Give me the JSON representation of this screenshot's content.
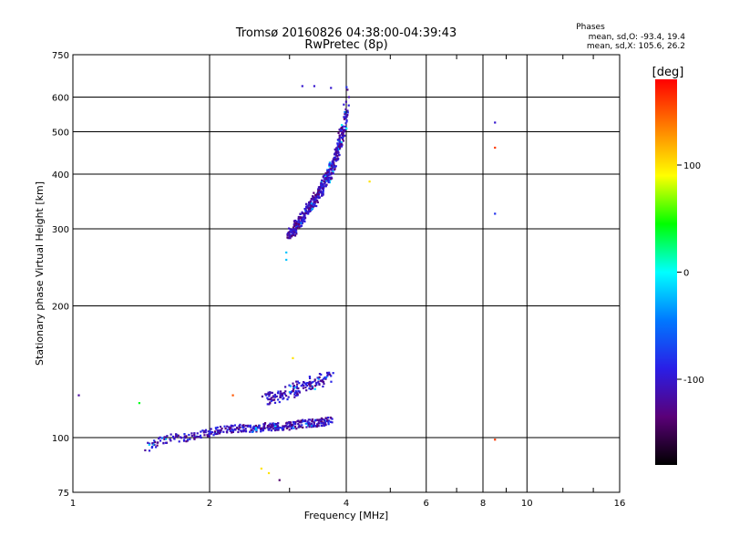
{
  "chart_data": {
    "type": "scatter",
    "title": "Tromsø 20160826 04:38:00-04:39:43",
    "subtitle": "RwPretec (8p)",
    "xlabel": "Frequency [MHz]",
    "ylabel": "Stationary phase Virtual Height [km]",
    "x_scale": "log",
    "y_scale": "log",
    "xlim": [
      1,
      16
    ],
    "ylim": [
      75,
      750
    ],
    "x_ticks": [
      1,
      2,
      4,
      6,
      8,
      10,
      16
    ],
    "y_ticks": [
      75,
      100,
      200,
      300,
      400,
      500,
      600,
      750
    ],
    "grid": true,
    "phases_box": {
      "title": "Phases",
      "line1": "mean, sd,O: -93.4, 19.4",
      "line2": "mean, sd,X: 105.6, 26.2"
    },
    "colorbar": {
      "label": "[deg]",
      "range": [
        -180,
        180
      ],
      "ticks": [
        100,
        0,
        -100
      ],
      "colormap": [
        "#000000",
        "#5a0078",
        "#2a1ee6",
        "#0078ff",
        "#00ffff",
        "#00ff00",
        "#ffff00",
        "#ff8000",
        "#ff0000"
      ]
    },
    "trace_F_layer": [
      [
        3.0,
        290
      ],
      [
        3.05,
        296
      ],
      [
        3.1,
        303
      ],
      [
        3.15,
        310
      ],
      [
        3.2,
        317
      ],
      [
        3.25,
        325
      ],
      [
        3.3,
        333
      ],
      [
        3.35,
        340
      ],
      [
        3.4,
        348
      ],
      [
        3.45,
        357
      ],
      [
        3.5,
        365
      ],
      [
        3.55,
        374
      ],
      [
        3.6,
        385
      ],
      [
        3.65,
        396
      ],
      [
        3.7,
        410
      ],
      [
        3.75,
        425
      ],
      [
        3.8,
        442
      ],
      [
        3.85,
        462
      ],
      [
        3.9,
        485
      ],
      [
        3.95,
        515
      ],
      [
        3.98,
        550
      ],
      [
        4.0,
        590
      ],
      [
        4.01,
        630
      ]
    ],
    "trace_E_layer": [
      [
        1.45,
        95
      ],
      [
        1.55,
        98
      ],
      [
        1.65,
        100
      ],
      [
        1.8,
        100
      ],
      [
        1.95,
        102
      ],
      [
        2.1,
        104
      ],
      [
        2.3,
        105
      ],
      [
        2.5,
        105
      ],
      [
        2.7,
        106
      ],
      [
        2.9,
        106
      ],
      [
        3.1,
        107
      ],
      [
        3.3,
        108
      ],
      [
        3.5,
        108
      ],
      [
        3.7,
        110
      ]
    ],
    "trace_Es_upper": [
      [
        2.6,
        122
      ],
      [
        2.8,
        124
      ],
      [
        3.0,
        127
      ],
      [
        3.2,
        131
      ],
      [
        3.4,
        134
      ],
      [
        3.6,
        137
      ],
      [
        3.7,
        140
      ]
    ],
    "highlighted_points": [
      {
        "x": 3.2,
        "y": 636,
        "phase": -100
      },
      {
        "x": 3.4,
        "y": 636,
        "phase": -100
      },
      {
        "x": 3.7,
        "y": 630,
        "phase": -100
      },
      {
        "x": 2.95,
        "y": 265,
        "phase": -20
      },
      {
        "x": 2.95,
        "y": 255,
        "phase": -20
      },
      {
        "x": 4.5,
        "y": 385,
        "phase": 100
      },
      {
        "x": 8.5,
        "y": 525,
        "phase": -100
      },
      {
        "x": 8.5,
        "y": 460,
        "phase": 160
      },
      {
        "x": 8.5,
        "y": 325,
        "phase": -80
      },
      {
        "x": 8.5,
        "y": 99,
        "phase": 160
      },
      {
        "x": 1.03,
        "y": 125,
        "phase": -120
      },
      {
        "x": 1.4,
        "y": 120,
        "phase": 40
      },
      {
        "x": 2.25,
        "y": 125,
        "phase": 150
      },
      {
        "x": 2.6,
        "y": 85,
        "phase": 100
      },
      {
        "x": 2.7,
        "y": 83,
        "phase": 100
      },
      {
        "x": 3.05,
        "y": 152,
        "phase": 100
      },
      {
        "x": 2.85,
        "y": 80,
        "phase": -140
      }
    ]
  }
}
